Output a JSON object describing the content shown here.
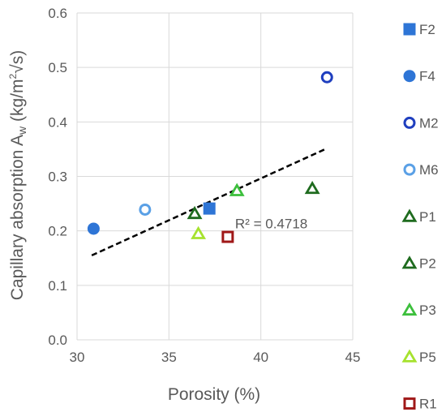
{
  "chart_data": {
    "type": "scatter",
    "xlabel": "Porosity (%)",
    "ylabel_main": "Capillary absorption A",
    "ylabel_sub": "w",
    "ylabel_unit_a": " (kg/m",
    "ylabel_unit_sup": "2",
    "ylabel_unit_b": "√s)",
    "xlim": [
      30,
      45
    ],
    "ylim": [
      0,
      0.6
    ],
    "xticks": [
      30,
      35,
      40,
      45
    ],
    "yticks": [
      0.0,
      0.1,
      0.2,
      0.3,
      0.4,
      0.5,
      0.6
    ],
    "ytick_labels": [
      "0.0",
      "0.1",
      "0.2",
      "0.3",
      "0.4",
      "0.5",
      "0.6"
    ],
    "grid": true,
    "legend_position": "right",
    "series": [
      {
        "name": "F2",
        "marker": "square-filled",
        "color": "#2e75d6",
        "points": [
          {
            "x": 37.2,
            "y": 0.241
          }
        ]
      },
      {
        "name": "F4",
        "marker": "circle-filled",
        "color": "#2e75d6",
        "points": [
          {
            "x": 30.9,
            "y": 0.204
          }
        ]
      },
      {
        "name": "M2",
        "marker": "circle-open",
        "color": "#1f3fbf",
        "points": [
          {
            "x": 43.6,
            "y": 0.482
          }
        ]
      },
      {
        "name": "M6",
        "marker": "circle-open",
        "color": "#5aa0e6",
        "points": [
          {
            "x": 33.7,
            "y": 0.239
          }
        ]
      },
      {
        "name": "P1",
        "marker": "triangle-open",
        "color": "#1e6b1e",
        "points": [
          {
            "x": 36.4,
            "y": 0.232
          }
        ]
      },
      {
        "name": "P2",
        "marker": "triangle-open",
        "color": "#1e6b1e",
        "points": [
          {
            "x": 42.8,
            "y": 0.278
          }
        ]
      },
      {
        "name": "P3",
        "marker": "triangle-open",
        "color": "#3cbf3c",
        "points": [
          {
            "x": 38.7,
            "y": 0.274
          }
        ]
      },
      {
        "name": "P5",
        "marker": "triangle-open",
        "color": "#a6e22e",
        "points": [
          {
            "x": 36.6,
            "y": 0.195
          }
        ]
      },
      {
        "name": "R1",
        "marker": "square-open",
        "color": "#a01818",
        "points": [
          {
            "x": 38.2,
            "y": 0.189
          }
        ]
      }
    ],
    "trendline": {
      "style": "dashed",
      "color": "#000000",
      "x": [
        30.8,
        43.5
      ],
      "y": [
        0.155,
        0.35
      ]
    },
    "annotation": {
      "text": "R² = 0.4718",
      "x": 38.6,
      "y": 0.205
    }
  }
}
